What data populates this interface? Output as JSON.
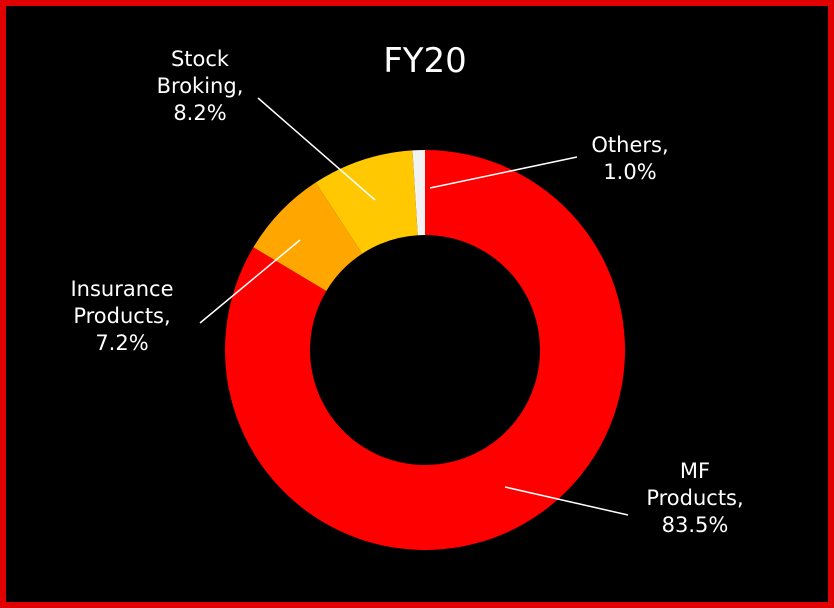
{
  "chart_data": {
    "type": "donut",
    "title": "FY20",
    "categories": [
      "MF Products,",
      "Insurance Products,",
      "Stock Broking,",
      "Others,"
    ],
    "values": [
      83.5,
      7.2,
      8.2,
      1.0
    ],
    "value_labels": [
      "83.5%",
      "7.2%",
      "8.2%",
      "1.0%"
    ],
    "colors": [
      "#ff0000",
      "#ffa600",
      "#ffc800",
      "#f2f2f2"
    ]
  }
}
